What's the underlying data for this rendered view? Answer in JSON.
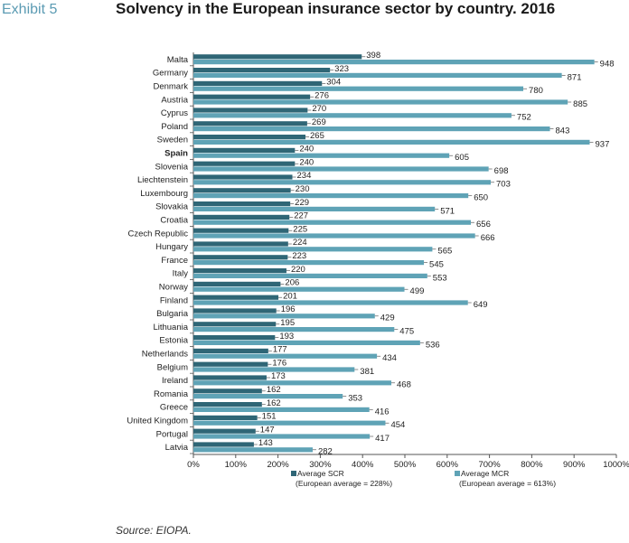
{
  "exhibit_label": "Exhibit 5",
  "source": "Source: EIOPA.",
  "colors": {
    "scr": "#2f6676",
    "mcr": "#5fa3b6",
    "axis": "#555555"
  },
  "chart_data": {
    "type": "bar",
    "orientation": "horizontal",
    "title": "Solvency in the European insurance sector by country. 2016",
    "categories": [
      "Malta",
      "Germany",
      "Denmark",
      "Austria",
      "Cyprus",
      "Poland",
      "Sweden",
      "Spain",
      "Slovenia",
      "Liechtenstein",
      "Luxembourg",
      "Slovakia",
      "Croatia",
      "Czech Republic",
      "Hungary",
      "France",
      "Italy",
      "Norway",
      "Finland",
      "Bulgaria",
      "Lithuania",
      "Estonia",
      "Netherlands",
      "Belgium",
      "Ireland",
      "Romania",
      "Greece",
      "United Kingdom",
      "Portugal",
      "Latvia"
    ],
    "highlight_category": "Spain",
    "series": [
      {
        "name": "Average SCR",
        "note": "(European average = 228%)",
        "values": [
          398,
          323,
          304,
          276,
          270,
          269,
          265,
          240,
          240,
          234,
          230,
          229,
          227,
          225,
          224,
          223,
          220,
          206,
          201,
          196,
          195,
          193,
          177,
          176,
          173,
          162,
          162,
          151,
          147,
          143
        ]
      },
      {
        "name": "Average MCR",
        "note": "(European average = 613%)",
        "values": [
          948,
          871,
          780,
          885,
          752,
          843,
          937,
          605,
          698,
          703,
          650,
          571,
          656,
          666,
          565,
          545,
          553,
          499,
          649,
          429,
          475,
          536,
          434,
          381,
          468,
          353,
          416,
          454,
          417,
          282
        ]
      }
    ],
    "xlim": [
      0,
      1000
    ],
    "xticks": [
      "0%",
      "100%",
      "200%",
      "300%",
      "400%",
      "500%",
      "600%",
      "700%",
      "800%",
      "900%",
      "1000%"
    ],
    "xlabel": "",
    "ylabel": "",
    "legend_position": "bottom"
  }
}
